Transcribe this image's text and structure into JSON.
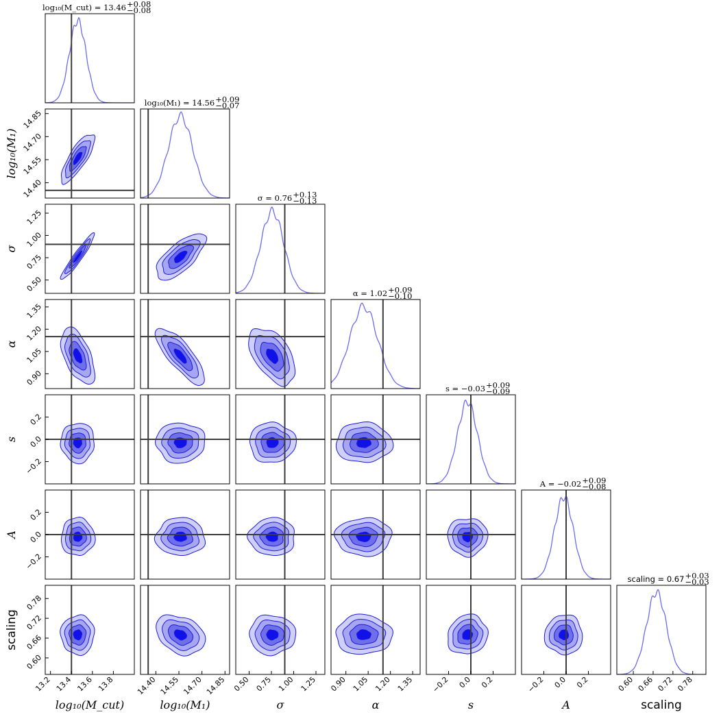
{
  "chart_data": {
    "type": "corner",
    "parameters": [
      {
        "key": "logMcut",
        "label": "log₁₀(M_cut)",
        "range": [
          13.15,
          14.0
        ],
        "ticks": [
          "13.2",
          "13.4",
          "13.6",
          "13.8"
        ],
        "tick_values": [
          13.2,
          13.4,
          13.6,
          13.8
        ],
        "mean": 13.46,
        "sd": 0.08,
        "truth": 13.4,
        "title": "log₁₀(M_cut) = 13.46 +0.08 −0.08",
        "title_val": "13.46",
        "err_plus": "+0.08",
        "err_minus": "−0.08"
      },
      {
        "key": "logM1",
        "label": "log₁₀(M₁)",
        "range": [
          14.3,
          14.88
        ],
        "ticks": [
          "14.40",
          "14.55",
          "14.70",
          "14.85"
        ],
        "tick_values": [
          14.4,
          14.55,
          14.7,
          14.85
        ],
        "mean": 14.56,
        "sd": 0.08,
        "truth": 14.35,
        "title": "log₁₀(M₁) = 14.56 +0.09 −0.07",
        "title_val": "14.56",
        "err_plus": "+0.09",
        "err_minus": "−0.07"
      },
      {
        "key": "sigma",
        "label": "σ",
        "range": [
          0.35,
          1.35
        ],
        "ticks": [
          "0.50",
          "0.75",
          "1.00",
          "1.25"
        ],
        "tick_values": [
          0.5,
          0.75,
          1.0,
          1.25
        ],
        "mean": 0.76,
        "sd": 0.13,
        "truth": 0.9,
        "title": "σ = 0.76 +0.13 −0.13",
        "title_val": "0.76",
        "err_plus": "+0.13",
        "err_minus": "−0.13"
      },
      {
        "key": "alpha",
        "label": "α",
        "range": [
          0.8,
          1.4
        ],
        "ticks": [
          "0.90",
          "1.05",
          "1.20",
          "1.35"
        ],
        "tick_values": [
          0.9,
          1.05,
          1.2,
          1.35
        ],
        "mean": 1.02,
        "sd": 0.095,
        "truth": 1.15,
        "title": "α = 1.02 +0.09 −0.10",
        "title_val": "1.02",
        "err_plus": "+0.09",
        "err_minus": "−0.10"
      },
      {
        "key": "s",
        "label": "s",
        "range": [
          -0.4,
          0.4
        ],
        "ticks": [
          "−0.2",
          "0.0",
          "0.2"
        ],
        "tick_values": [
          -0.2,
          0.0,
          0.2
        ],
        "mean": -0.03,
        "sd": 0.09,
        "truth": 0.0,
        "title": "s = −0.03 +0.09 −0.09",
        "title_val": "−0.03",
        "err_plus": "+0.09",
        "err_minus": "−0.09"
      },
      {
        "key": "A",
        "label": "A",
        "range": [
          -0.4,
          0.4
        ],
        "ticks": [
          "−0.2",
          "0.0",
          "0.2"
        ],
        "tick_values": [
          -0.2,
          0.0,
          0.2
        ],
        "mean": -0.02,
        "sd": 0.085,
        "truth": 0.0,
        "title": "A = −0.02 +0.09 −0.08",
        "title_val": "−0.02",
        "err_plus": "+0.09",
        "err_minus": "−0.08"
      },
      {
        "key": "scaling",
        "label": "scaling",
        "range": [
          0.55,
          0.82
        ],
        "ticks": [
          "0.60",
          "0.66",
          "0.72",
          "0.78"
        ],
        "tick_values": [
          0.6,
          0.66,
          0.72,
          0.78
        ],
        "mean": 0.67,
        "sd": 0.03,
        "truth": null,
        "title": "scaling = 0.67 +0.03 −0.03",
        "title_val": "0.67",
        "err_plus": "+0.03",
        "err_minus": "−0.03"
      }
    ],
    "correlations": {
      "logM1|logMcut": 0.8,
      "sigma|logMcut": 0.95,
      "sigma|logM1": 0.7,
      "alpha|logMcut": -0.55,
      "alpha|logM1": -0.8,
      "alpha|sigma": -0.5,
      "s|logMcut": 0.0,
      "s|logM1": 0.0,
      "s|sigma": 0.0,
      "s|alpha": 0.0,
      "A|logMcut": 0.0,
      "A|logM1": 0.0,
      "A|sigma": 0.0,
      "A|alpha": 0.0,
      "A|s": 0.0,
      "scaling|logMcut": 0.0,
      "scaling|logM1": -0.3,
      "scaling|sigma": 0.0,
      "scaling|alpha": 0.0,
      "scaling|s": 0.1,
      "scaling|A": 0.0
    },
    "contour_levels_sigma": [
      0.5,
      1.0,
      1.5,
      2.0
    ],
    "colors": {
      "hist": "#6b6bf2",
      "contour_edge": "#1a1adb",
      "contour_fills": [
        "#cfcff7",
        "#a6a6f1",
        "#6f6fea",
        "#1010e8"
      ],
      "truth": "#3b3b3b"
    },
    "grid": false,
    "legend": "none"
  }
}
